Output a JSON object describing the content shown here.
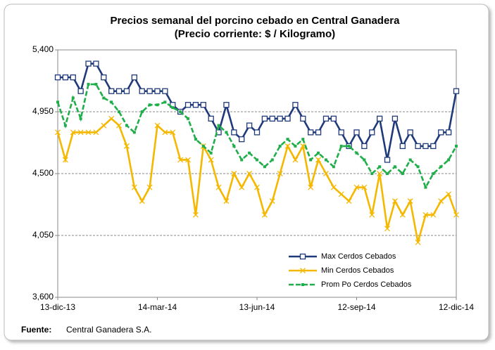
{
  "chart_data": {
    "type": "line",
    "title": "Precios semanal del porcino cebado en Central Ganadera",
    "subtitle": "(Precio corriente: $ / Kilogramo)",
    "source_label": "Fuente:",
    "source": "Central Ganadera S.A.",
    "categories": [
      "13-dic-13",
      null,
      null,
      null,
      null,
      null,
      null,
      null,
      null,
      null,
      null,
      null,
      null,
      "14-mar-14",
      null,
      null,
      null,
      null,
      null,
      null,
      null,
      null,
      null,
      null,
      null,
      null,
      "13-jun-14",
      null,
      null,
      null,
      null,
      null,
      null,
      null,
      null,
      null,
      null,
      null,
      null,
      "12-sep-14",
      null,
      null,
      null,
      null,
      null,
      null,
      null,
      null,
      null,
      null,
      null,
      null,
      "12-dic-14"
    ],
    "ylim": [
      3600,
      5400
    ],
    "yticks": [
      {
        "value": 3600,
        "label": "3,600"
      },
      {
        "value": 4050,
        "label": "4,050"
      },
      {
        "value": 4500,
        "label": "4,500"
      },
      {
        "value": 4950,
        "label": "4,950"
      },
      {
        "value": 5400,
        "label": "5,400"
      }
    ],
    "grid": true,
    "legend": "lower right",
    "series": [
      {
        "name": "Max Cerdos Cebados",
        "color": "#1f3a7a",
        "marker": "square",
        "values": [
          5200,
          5200,
          5200,
          5100,
          5300,
          5300,
          5200,
          5100,
          5100,
          5100,
          5200,
          5100,
          5100,
          5100,
          5100,
          5000,
          4950,
          5000,
          5000,
          5000,
          4900,
          4800,
          5000,
          4800,
          4750,
          4850,
          4800,
          4900,
          4900,
          4900,
          4900,
          5000,
          4900,
          4800,
          4800,
          4900,
          4900,
          4800,
          4700,
          4800,
          4700,
          4800,
          4900,
          4600,
          4900,
          4700,
          4800,
          4700,
          4700,
          4700,
          4800,
          4800,
          5100
        ]
      },
      {
        "name": "Min Cerdos Cebados",
        "color": "#f5b800",
        "marker": "x",
        "values": [
          4800,
          4600,
          4800,
          4800,
          4800,
          4800,
          4850,
          4900,
          4850,
          4700,
          4400,
          4300,
          4400,
          4850,
          4800,
          4800,
          4600,
          4600,
          4200,
          4700,
          4600,
          4400,
          4300,
          4500,
          4400,
          4500,
          4400,
          4200,
          4300,
          4500,
          4700,
          4600,
          4700,
          4400,
          4600,
          4500,
          4400,
          4350,
          4300,
          4400,
          4400,
          4200,
          4500,
          4100,
          4300,
          4200,
          4300,
          4000,
          4200,
          4200,
          4300,
          4350,
          4200
        ]
      },
      {
        "name": "Prom Po Cerdos Cebados",
        "color": "#1fae4a",
        "marker": "dot",
        "values": [
          5020,
          4850,
          5050,
          4900,
          5150,
          5150,
          5050,
          5020,
          4950,
          4850,
          4800,
          4950,
          5000,
          5000,
          5020,
          4980,
          4950,
          4900,
          4750,
          4700,
          4650,
          4850,
          4800,
          4700,
          4600,
          4650,
          4600,
          4550,
          4600,
          4700,
          4750,
          4700,
          4750,
          4600,
          4650,
          4600,
          4550,
          4700,
          4700,
          4650,
          4600,
          4500,
          4550,
          4500,
          4550,
          4500,
          4600,
          4550,
          4400,
          4500,
          4550,
          4600,
          4700
        ]
      }
    ]
  }
}
